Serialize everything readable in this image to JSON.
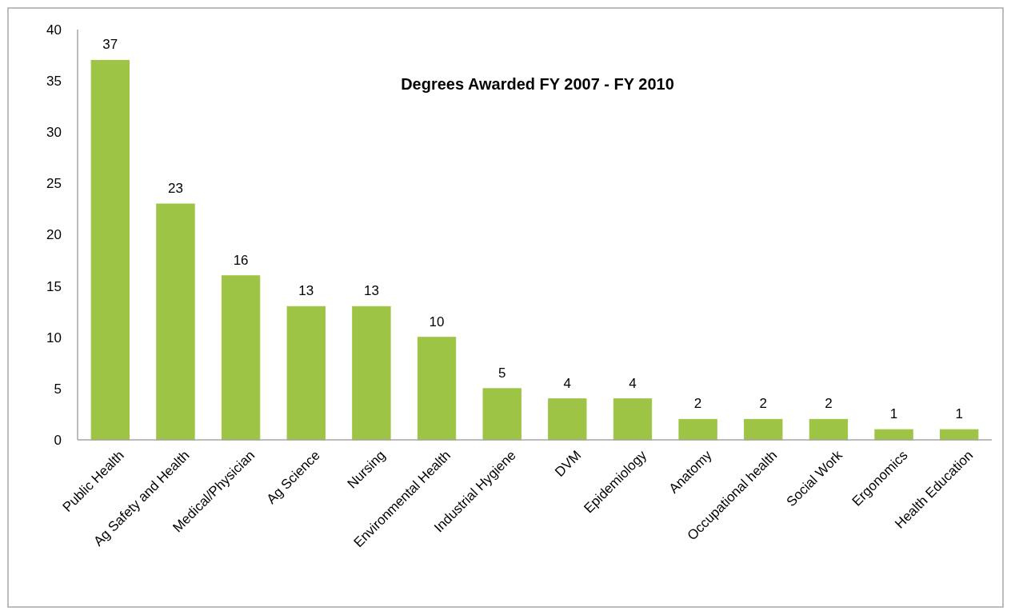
{
  "chart_data": {
    "type": "bar",
    "title": "Degrees Awarded FY 2007 - FY 2010",
    "categories": [
      "Public Health",
      "Ag Safety and Health",
      "Medical/Physician",
      "Ag Science",
      "Nursing",
      "Environmental Health",
      "Industrial Hygiene",
      "DVM",
      "Epidemiology",
      "Anatomy",
      "Occupational health",
      "Social Work",
      "Ergonomics",
      "Health Education"
    ],
    "values": [
      37,
      23,
      16,
      13,
      13,
      10,
      5,
      4,
      4,
      2,
      2,
      2,
      1,
      1
    ],
    "color": "#9dc445",
    "ylim": [
      0,
      40
    ],
    "yticks": [
      0,
      5,
      10,
      15,
      20,
      25,
      30,
      35,
      40
    ],
    "data_labels": true,
    "grid": false
  }
}
